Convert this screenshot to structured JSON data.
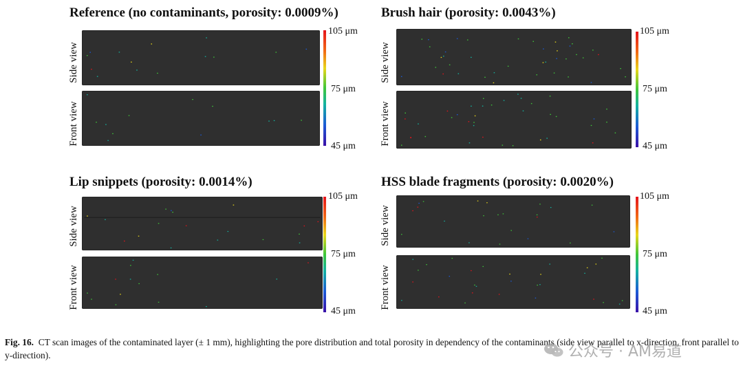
{
  "panels": [
    {
      "id": "reference",
      "title": "Reference (no contaminants, porosity: 0.0009%)"
    },
    {
      "id": "brush-hair",
      "title": "Brush hair (porosity: 0.0043%)"
    },
    {
      "id": "lip-snippets",
      "title": "Lip snippets (porosity: 0.0014%)"
    },
    {
      "id": "hss-blade",
      "title": "HSS blade fragments (porosity: 0.0020%)"
    }
  ],
  "views": {
    "side": "Side view",
    "front": "Front view"
  },
  "colorbar": {
    "max": "105 μm",
    "mid": "75 μm",
    "min": "45 μm",
    "colors": [
      "#e5141c",
      "#f26b16",
      "#e8d61a",
      "#3fc63a",
      "#14b3a0",
      "#1c5bd6",
      "#3a10a8"
    ]
  },
  "scan_background": "#2f2f2f",
  "caption": {
    "label": "Fig. 16.",
    "text": "CT scan images of the contaminated layer (± 1 mm), highlighting the pore distribution and total porosity in dependency of the contaminants (side view parallel to x-direction, front parallel to y-direction)."
  },
  "watermark": {
    "text": "公众号 · AM易道",
    "icon": "wechat-logo-icon"
  }
}
